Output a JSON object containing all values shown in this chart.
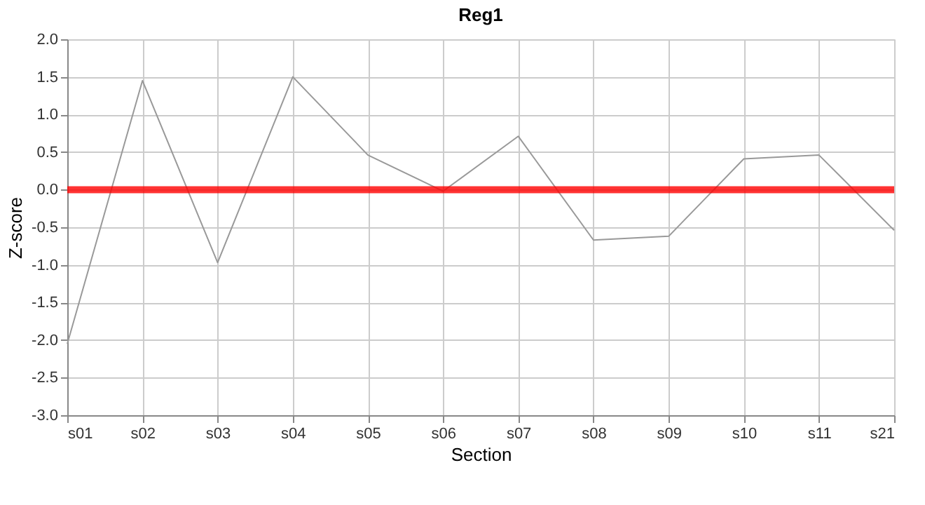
{
  "chart_data": {
    "type": "line",
    "title": "Reg1",
    "xlabel": "Section",
    "ylabel": "Z-score",
    "categories": [
      "s01",
      "s02",
      "s03",
      "s04",
      "s05",
      "s06",
      "s07",
      "s08",
      "s09",
      "s10",
      "s11",
      "s21"
    ],
    "series": [
      {
        "color": "#999999",
        "values": [
          -2.05,
          1.45,
          -0.97,
          1.5,
          0.46,
          -0.02,
          0.71,
          -0.67,
          -0.62,
          0.41,
          0.46,
          -0.54
        ]
      }
    ],
    "ylim": [
      -3.0,
      2.0
    ],
    "yticks": [
      {
        "value": -3,
        "label": "-3.0"
      },
      {
        "value": -2.5,
        "label": "-2.5"
      },
      {
        "value": -2,
        "label": "-2.0"
      },
      {
        "value": -1.5,
        "label": "-1.5"
      },
      {
        "value": -1,
        "label": "-1.0"
      },
      {
        "value": -0.5,
        "label": "-0.5"
      },
      {
        "value": 0,
        "label": "0.0"
      },
      {
        "value": 0.5,
        "label": "0.5"
      },
      {
        "value": 1,
        "label": "1.0"
      },
      {
        "value": 1.5,
        "label": "1.5"
      },
      {
        "value": 2,
        "label": "2.0"
      }
    ],
    "ref_lines": [
      {
        "axis": "y",
        "value": 0,
        "color": "#ff0000"
      }
    ],
    "grid": true,
    "marker": "none",
    "line_style": "solid"
  }
}
